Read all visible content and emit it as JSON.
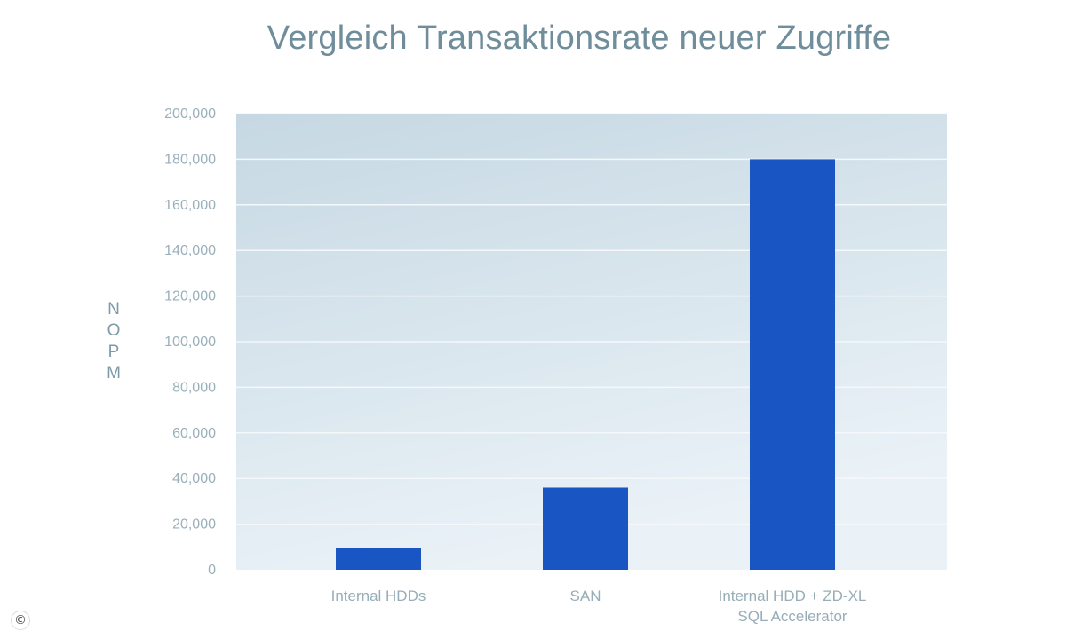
{
  "chart_data": {
    "type": "bar",
    "title": "Vergleich Transaktionsrate neuer Zugriffe",
    "ylabel": "NOPM",
    "xlabel": "",
    "categories": [
      [
        "Internal HDDs"
      ],
      [
        "SAN"
      ],
      [
        "Internal HDD + ZD-XL",
        "SQL Accelerator"
      ]
    ],
    "values": [
      9500,
      36000,
      180000
    ],
    "ylim": [
      0,
      200000
    ],
    "yticks": [
      0,
      20000,
      40000,
      60000,
      80000,
      100000,
      120000,
      140000,
      160000,
      180000,
      200000
    ],
    "ytick_labels": [
      "0",
      "20,000",
      "40,000",
      "60,000",
      "80,000",
      "100,000",
      "120,000",
      "140,000",
      "160,000",
      "180,000",
      "200,000"
    ],
    "grid": true,
    "legend": "none",
    "colors": {
      "bar": "#1a55c4",
      "plot_bg_top": "#c9dae4",
      "plot_bg_bottom": "#e9f1f6",
      "grid": "#f4f8fb",
      "title": "#6f8d9b"
    }
  },
  "badges": {
    "copyright": "©"
  }
}
